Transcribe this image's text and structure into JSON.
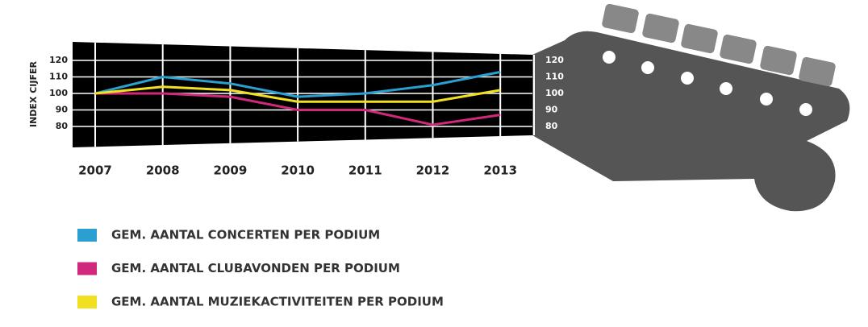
{
  "chart_data": {
    "type": "line",
    "y_label": "INDEX CIJFER",
    "categories": [
      "2007",
      "2008",
      "2009",
      "2010",
      "2011",
      "2012",
      "2013"
    ],
    "series": [
      {
        "name": "GEM. AANTAL CONCERTEN PER PODIUM",
        "color": "#2a9fd0",
        "values": [
          100,
          110,
          106,
          98,
          100,
          105,
          113
        ]
      },
      {
        "name": "GEM. AANTAL CLUBAVONDEN PER PODIUM",
        "color": "#d0287a",
        "values": [
          100,
          100,
          98,
          90,
          90,
          81,
          87
        ]
      },
      {
        "name": "GEM. AANTAL MUZIEKACTIVITEITEN PER PODIUM",
        "color": "#f0e020",
        "values": [
          100,
          104,
          102,
          95,
          95,
          95,
          102
        ]
      }
    ],
    "ylim": [
      70,
      125
    ],
    "yticks": [
      80,
      90,
      100,
      110,
      120
    ],
    "y2lim": [
      70,
      125
    ],
    "y2ticks": [
      80,
      90,
      100,
      110,
      120
    ],
    "grid": true
  }
}
